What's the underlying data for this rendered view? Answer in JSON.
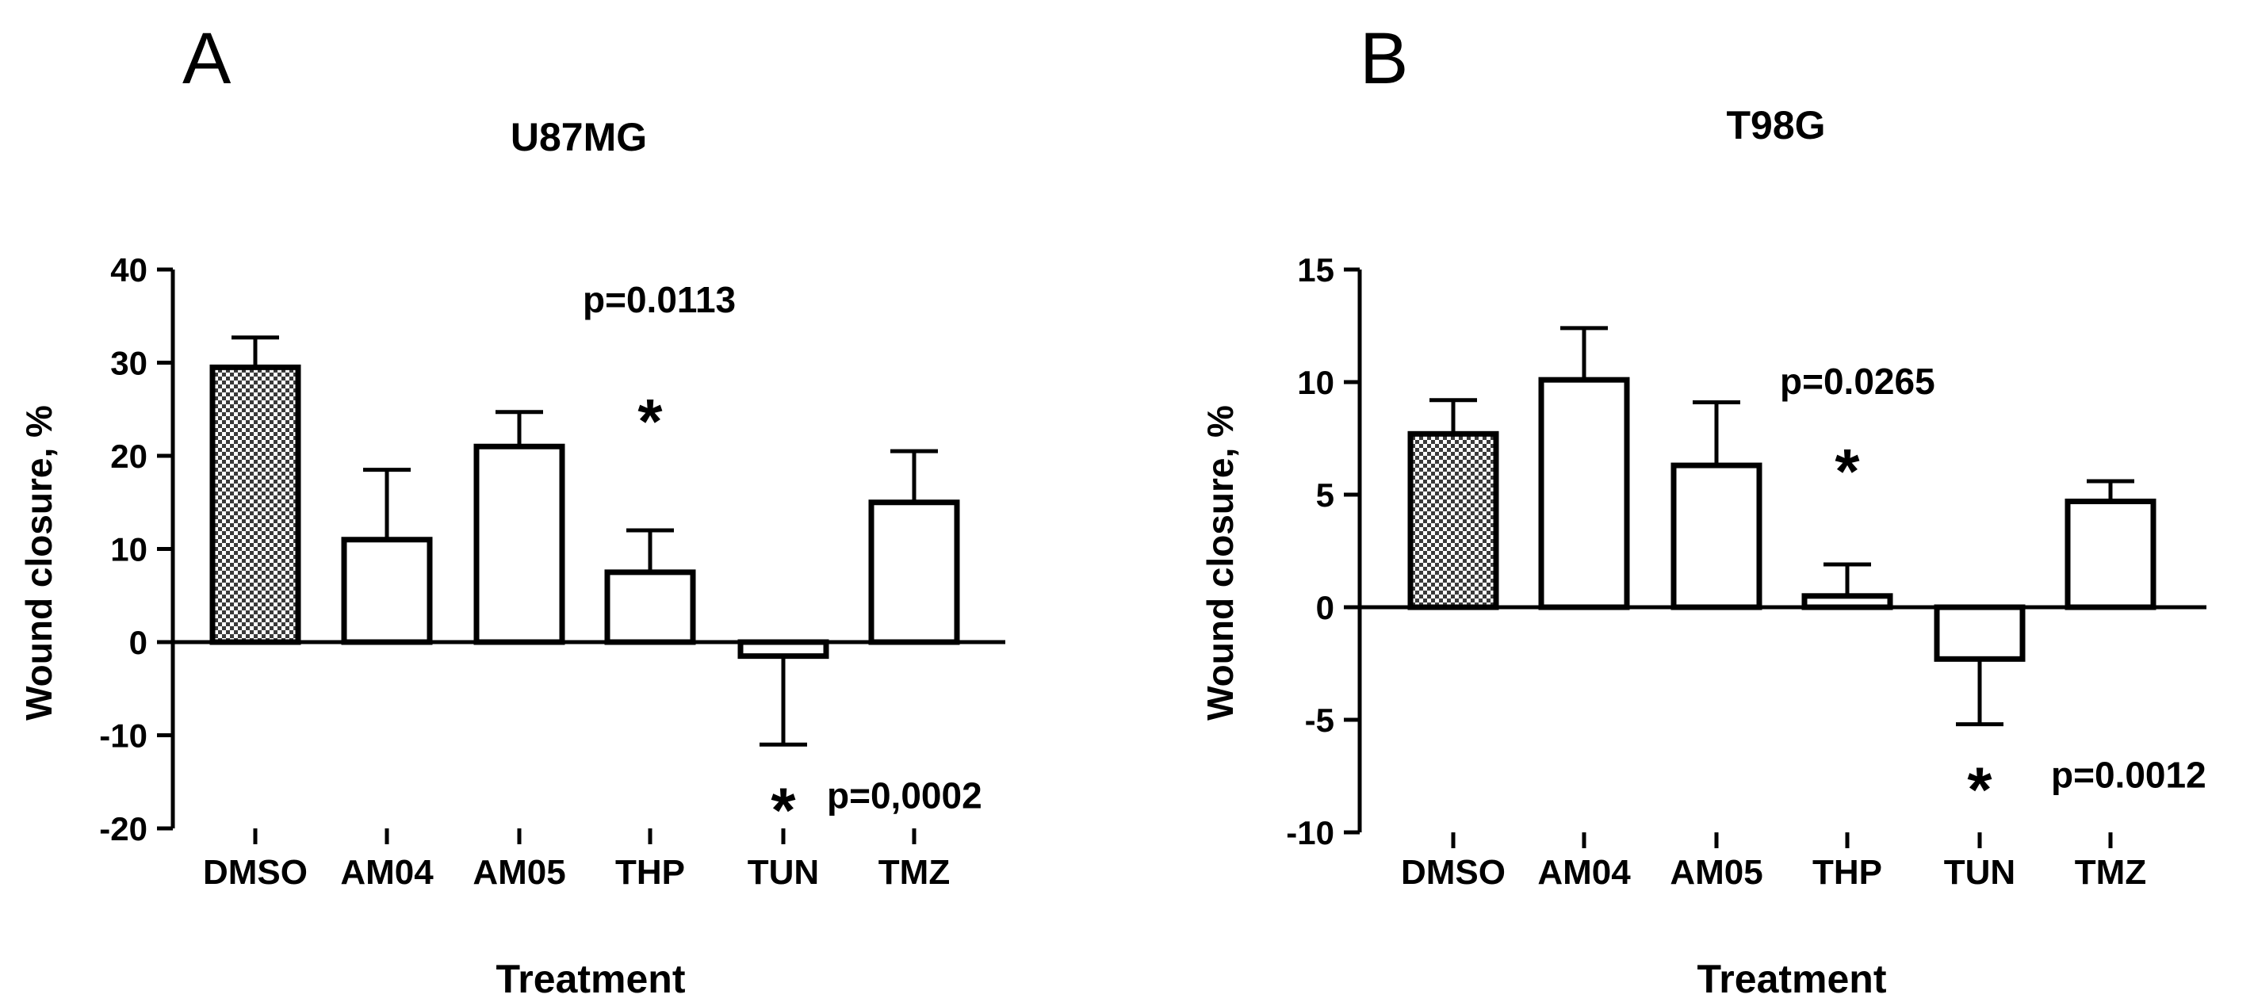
{
  "chart_data": [
    {
      "type": "bar",
      "panel": "A",
      "title": "U87MG",
      "xlabel": "Treatment",
      "ylabel": "Wound closure, %",
      "ylim": [
        -20,
        40
      ],
      "yticks": [
        40,
        30,
        20,
        10,
        0,
        -10,
        -20
      ],
      "categories": [
        "DMSO",
        "AM04",
        "AM05",
        "THP",
        "TUN",
        "TMZ"
      ],
      "values": [
        29.5,
        11,
        21,
        7.5,
        -1.5,
        15
      ],
      "errors": [
        3.2,
        7.5,
        3.7,
        4.5,
        9.5,
        5.5
      ],
      "error_direction": [
        "up",
        "up",
        "up",
        "up",
        "down",
        "up"
      ],
      "patterned": [
        true,
        false,
        false,
        false,
        false,
        false
      ],
      "annotations": [
        {
          "category": "THP",
          "star": "*",
          "ptext": "p=0.0113",
          "side": "above"
        },
        {
          "category": "TUN",
          "star": "*",
          "ptext": "p=0,0002",
          "side": "below"
        }
      ]
    },
    {
      "type": "bar",
      "panel": "B",
      "title": "T98G",
      "xlabel": "Treatment",
      "ylabel": "Wound closure, %",
      "ylim": [
        -10,
        15
      ],
      "yticks": [
        15,
        10,
        5,
        0,
        -5,
        -10
      ],
      "categories": [
        "DMSO",
        "AM04",
        "AM05",
        "THP",
        "TUN",
        "TMZ"
      ],
      "values": [
        7.7,
        10.1,
        6.3,
        0.5,
        -2.3,
        4.7
      ],
      "errors": [
        1.5,
        2.3,
        2.8,
        1.4,
        2.9,
        0.9
      ],
      "error_direction": [
        "up",
        "up",
        "up",
        "up",
        "down",
        "up"
      ],
      "patterned": [
        true,
        false,
        false,
        false,
        false,
        false
      ],
      "annotations": [
        {
          "category": "THP",
          "star": "*",
          "ptext": "p=0.0265",
          "side": "above"
        },
        {
          "category": "TUN",
          "star": "*",
          "ptext": "p=0.0012",
          "side": "below"
        }
      ]
    }
  ]
}
